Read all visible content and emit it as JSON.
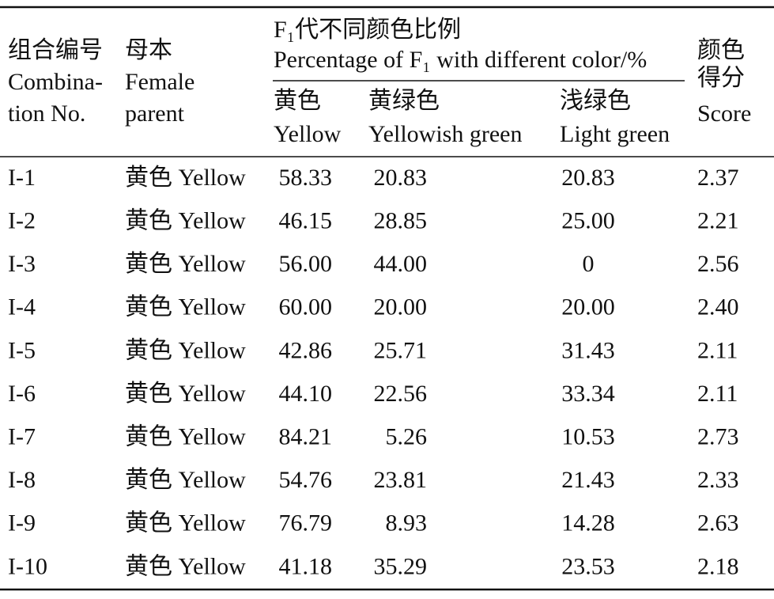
{
  "header": {
    "combination": [
      "组合编号",
      "Combina-",
      "tion No."
    ],
    "female_parent": [
      "母本",
      "Female",
      "parent"
    ],
    "group": [
      "F₁代不同颜色比例",
      "Percentage of F₁ with different color/%"
    ],
    "yellow": [
      "黄色",
      "Yellow"
    ],
    "yellowish_green": [
      "黄绿色",
      "Yellowish green"
    ],
    "light_green": [
      "浅绿色",
      "Light green"
    ],
    "score": [
      "颜色",
      "得分",
      "Score"
    ]
  },
  "table": {
    "rows": [
      [
        "I-1",
        "黄色 Yellow",
        "58.33",
        "20.83",
        "20.83",
        "2.37"
      ],
      [
        "I-2",
        "黄色 Yellow",
        "46.15",
        "28.85",
        "25.00",
        "2.21"
      ],
      [
        "I-3",
        "黄色 Yellow",
        "56.00",
        "44.00",
        "0",
        "2.56"
      ],
      [
        "I-4",
        "黄色 Yellow",
        "60.00",
        "20.00",
        "20.00",
        "2.40"
      ],
      [
        "I-5",
        "黄色 Yellow",
        "42.86",
        "25.71",
        "31.43",
        "2.11"
      ],
      [
        "I-6",
        "黄色 Yellow",
        "44.10",
        "22.56",
        "33.34",
        "2.11"
      ],
      [
        "I-7",
        "黄色 Yellow",
        "84.21",
        "5.26",
        "10.53",
        "2.73"
      ],
      [
        "I-8",
        "黄色 Yellow",
        "54.76",
        "23.81",
        "21.43",
        "2.33"
      ],
      [
        "I-9",
        "黄色 Yellow",
        "76.79",
        "8.93",
        "14.28",
        "2.63"
      ],
      [
        "I-10",
        "黄色 Yellow",
        "41.18",
        "35.29",
        "23.53",
        "2.18"
      ]
    ]
  }
}
